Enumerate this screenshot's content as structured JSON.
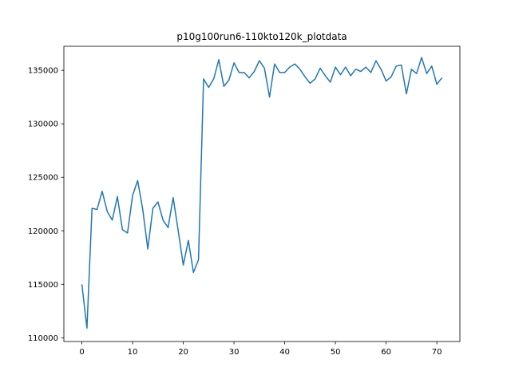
{
  "chart_data": {
    "type": "line",
    "title": "p10g100run6-110kto120k_plotdata",
    "xlabel": "",
    "ylabel": "",
    "xlim": [
      -3.55,
      74.55
    ],
    "ylim": [
      109650,
      137250
    ],
    "xticks": [
      0,
      10,
      20,
      30,
      40,
      50,
      60,
      70
    ],
    "yticks": [
      110000,
      115000,
      120000,
      125000,
      130000,
      135000
    ],
    "grid": false,
    "line_color": "#1f77b4",
    "series": [
      {
        "values": [
          115000,
          110900,
          122100,
          122000,
          123700,
          121800,
          121000,
          123200,
          120100,
          119800,
          123300,
          124700,
          122000,
          118300,
          122100,
          122700,
          121000,
          120300,
          123100,
          120000,
          116800,
          119100,
          116100,
          117300,
          134200,
          133400,
          134200,
          136000,
          133500,
          134100,
          135700,
          134800,
          134800,
          134300,
          134900,
          135900,
          135200,
          132500,
          135600,
          134800,
          134800,
          135300,
          135600,
          135100,
          134400,
          133800,
          134200,
          135200,
          134500,
          133900,
          135300,
          134600,
          135300,
          134500,
          135100,
          134900,
          135300,
          134800,
          135900,
          135100,
          134000,
          134400,
          135400,
          135500,
          132800,
          135100,
          134700,
          136200,
          134700,
          135400,
          133700,
          134300
        ]
      }
    ]
  }
}
